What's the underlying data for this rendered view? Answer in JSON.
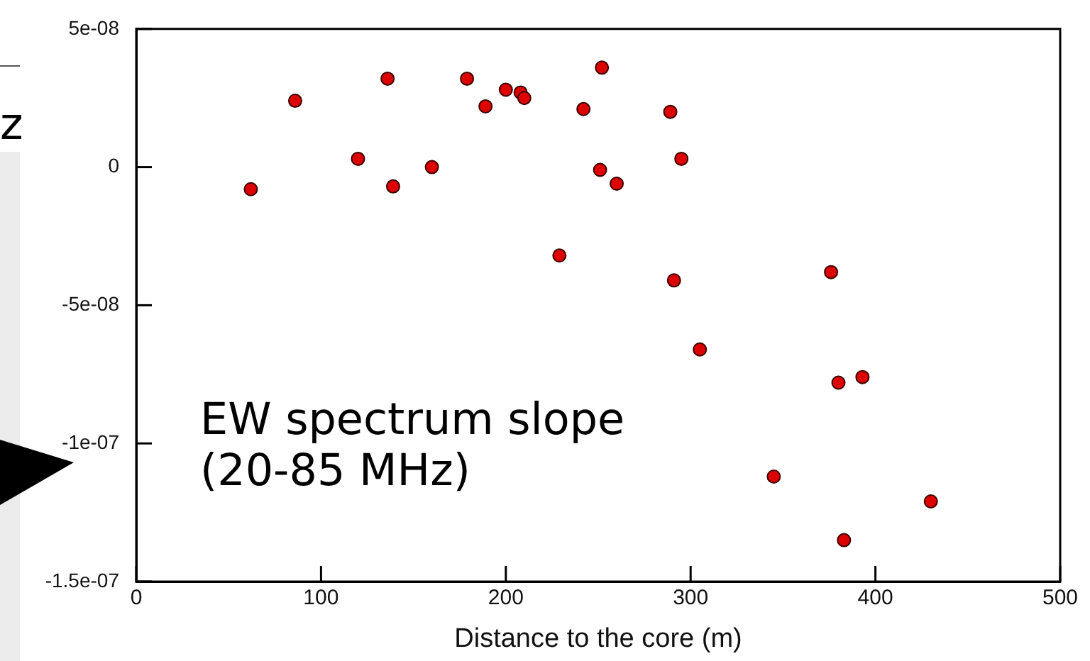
{
  "chart_data": {
    "type": "scatter",
    "xlabel": "Distance to the core (m)",
    "annotations": [
      "EW spectrum slope\n(20-85 MHz)",
      "z"
    ],
    "xlim": [
      0,
      500
    ],
    "xticks": [
      0,
      100,
      200,
      300,
      400,
      500
    ],
    "ylim": [
      -1.5e-07,
      5e-08
    ],
    "yticks": [
      {
        "value": -1.5e-07,
        "label": "-1.5e-07"
      },
      {
        "value": -1e-07,
        "label": "-1e-07"
      },
      {
        "value": -5e-08,
        "label": "-5e-08"
      },
      {
        "value": 0,
        "label": "0"
      },
      {
        "value": 5e-08,
        "label": "5e-08"
      }
    ],
    "marker": "circle",
    "legend": false,
    "series": [
      {
        "color": "#dd0000",
        "x": [
          62,
          86,
          120,
          136,
          139,
          160,
          179,
          189,
          200,
          208,
          210,
          229,
          252,
          242,
          289,
          295,
          251,
          260,
          291,
          376,
          305,
          380,
          393,
          345,
          430,
          383
        ],
        "values": [
          -8e-09,
          2.4e-08,
          3e-09,
          3.2e-08,
          -7e-09,
          0,
          3.2e-08,
          2.2e-08,
          2.8e-08,
          2.7e-08,
          2.5e-08,
          -3.2e-08,
          3.6e-08,
          2.1e-08,
          2e-08,
          3e-09,
          -1e-09,
          -6e-09,
          -4.1e-08,
          -3.8e-08,
          -6.6e-08,
          -7.8e-08,
          -7.6e-08,
          -1.12e-07,
          -1.21e-07,
          -1.35e-07
        ]
      }
    ]
  }
}
